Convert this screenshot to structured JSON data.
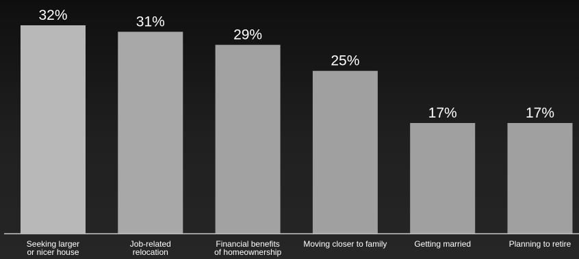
{
  "chart_data": {
    "type": "bar",
    "title": "",
    "xlabel": "",
    "ylabel": "",
    "ylim": [
      0,
      32
    ],
    "grid": false,
    "legend": "none",
    "value_suffix": "%",
    "categories": [
      [
        "Seeking larger",
        "or nicer house"
      ],
      [
        "Job-related",
        "relocation"
      ],
      [
        "Financial benefits",
        "of homeownership"
      ],
      [
        "Moving closer to family"
      ],
      [
        "Getting married"
      ],
      [
        "Planning to retire"
      ]
    ],
    "values": [
      32,
      31,
      29,
      25,
      17,
      17
    ],
    "colors": [
      "#b8b8b8",
      "#a8a8a8",
      "#a2a2a2",
      "#a0a0a0",
      "#a0a0a0",
      "#a0a0a0"
    ],
    "axis_color": "#c8c8c8"
  }
}
